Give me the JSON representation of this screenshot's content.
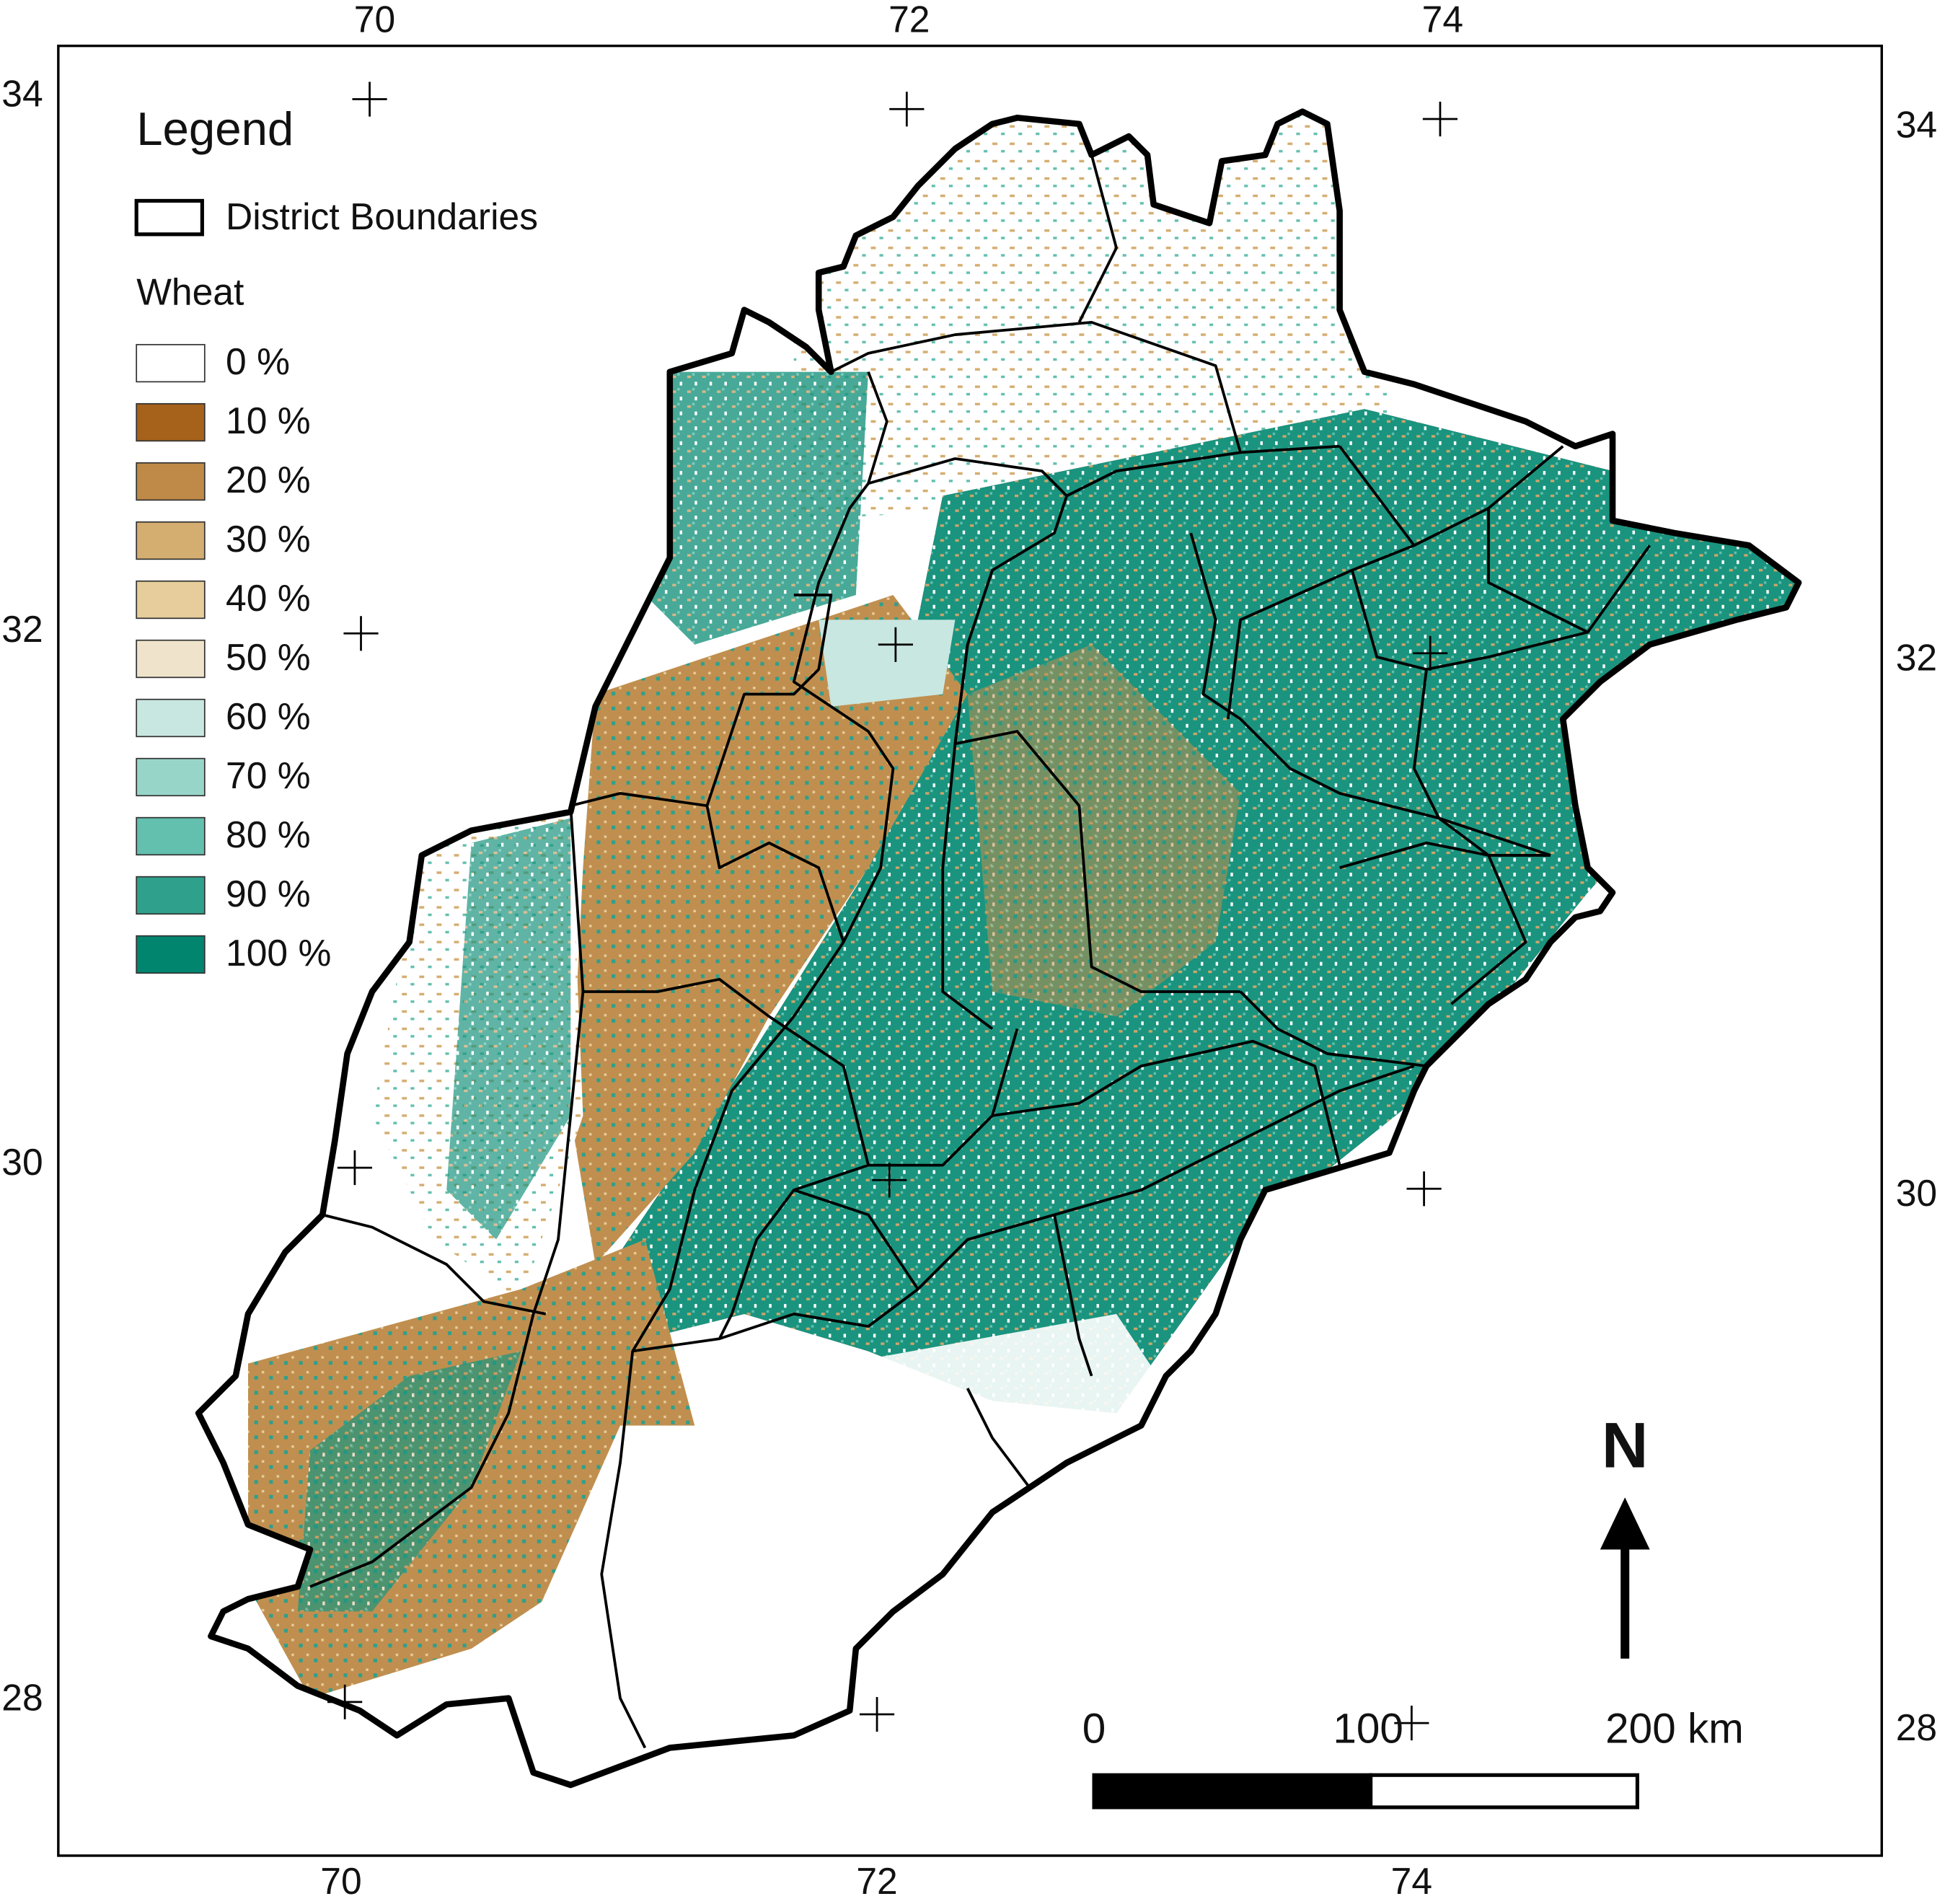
{
  "map": {
    "top_ticks": [
      "70",
      "72",
      "74"
    ],
    "bottom_ticks": [
      "70",
      "72",
      "74"
    ],
    "left_ticks": [
      "34",
      "32",
      "30",
      "28"
    ],
    "right_ticks": [
      "34",
      "32",
      "30",
      "28"
    ],
    "legend": {
      "title": "Legend",
      "boundary_label": "District Boundaries",
      "layer_title": "Wheat",
      "classes": [
        {
          "label": "0 %",
          "color": "#ffffff"
        },
        {
          "label": "10 %",
          "color": "#a6611a"
        },
        {
          "label": "20 %",
          "color": "#bf8a47"
        },
        {
          "label": "30 %",
          "color": "#d4ad70"
        },
        {
          "label": "40 %",
          "color": "#e6cd9b"
        },
        {
          "label": "50 %",
          "color": "#efe4cb"
        },
        {
          "label": "60 %",
          "color": "#c9e7e1"
        },
        {
          "label": "70 %",
          "color": "#98d5c9"
        },
        {
          "label": "80 %",
          "color": "#63bfae"
        },
        {
          "label": "90 %",
          "color": "#2fa08c"
        },
        {
          "label": "100 %",
          "color": "#01856f"
        }
      ]
    },
    "north": "N",
    "scale": [
      "0",
      "100",
      "200 km"
    ]
  }
}
